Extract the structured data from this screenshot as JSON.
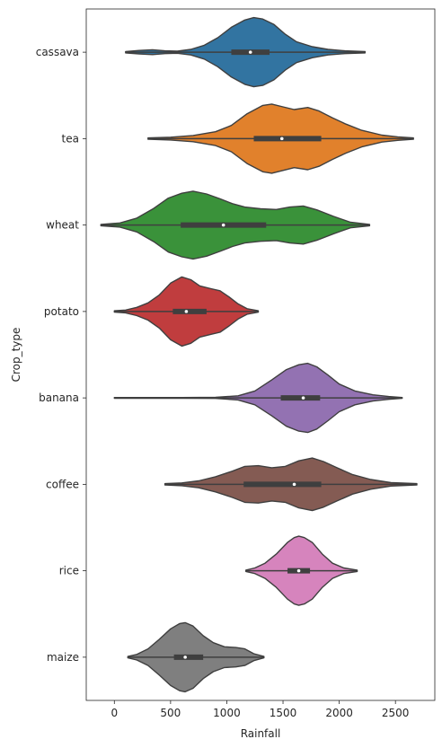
{
  "chart_data": {
    "type": "violin",
    "orientation": "horizontal",
    "xlabel": "Rainfall",
    "ylabel": "Crop_type",
    "xlim": [
      -250,
      2850
    ],
    "xticks": [
      0,
      500,
      1000,
      1500,
      2000,
      2500
    ],
    "grid": false,
    "categories": [
      "cassava",
      "tea",
      "wheat",
      "potato",
      "banana",
      "coffee",
      "rice",
      "maize"
    ],
    "violins": [
      {
        "category": "cassava",
        "color": "#3274a1",
        "min": 100,
        "max": 2230,
        "q1": 1040,
        "median": 1210,
        "q3": 1380,
        "profile": [
          [
            100,
            0.02
          ],
          [
            220,
            0.05
          ],
          [
            340,
            0.07
          ],
          [
            450,
            0.04
          ],
          [
            560,
            0.03
          ],
          [
            680,
            0.08
          ],
          [
            800,
            0.2
          ],
          [
            920,
            0.42
          ],
          [
            1040,
            0.72
          ],
          [
            1160,
            0.93
          ],
          [
            1240,
            1.0
          ],
          [
            1320,
            0.96
          ],
          [
            1420,
            0.8
          ],
          [
            1520,
            0.52
          ],
          [
            1620,
            0.3
          ],
          [
            1760,
            0.16
          ],
          [
            1900,
            0.08
          ],
          [
            2050,
            0.04
          ],
          [
            2230,
            0.02
          ]
        ]
      },
      {
        "category": "tea",
        "color": "#e1812c",
        "min": 300,
        "max": 2660,
        "q1": 1240,
        "median": 1490,
        "q3": 1840,
        "profile": [
          [
            300,
            0.02
          ],
          [
            500,
            0.04
          ],
          [
            700,
            0.09
          ],
          [
            900,
            0.2
          ],
          [
            1040,
            0.38
          ],
          [
            1180,
            0.72
          ],
          [
            1320,
            0.96
          ],
          [
            1400,
            1.0
          ],
          [
            1500,
            0.92
          ],
          [
            1600,
            0.84
          ],
          [
            1720,
            0.9
          ],
          [
            1820,
            0.8
          ],
          [
            1940,
            0.6
          ],
          [
            2060,
            0.42
          ],
          [
            2200,
            0.24
          ],
          [
            2380,
            0.1
          ],
          [
            2520,
            0.05
          ],
          [
            2660,
            0.02
          ]
        ]
      },
      {
        "category": "wheat",
        "color": "#3a923a",
        "min": -120,
        "max": 2270,
        "q1": 590,
        "median": 970,
        "q3": 1350,
        "profile": [
          [
            -120,
            0.02
          ],
          [
            50,
            0.06
          ],
          [
            200,
            0.2
          ],
          [
            350,
            0.48
          ],
          [
            480,
            0.78
          ],
          [
            600,
            0.92
          ],
          [
            700,
            0.98
          ],
          [
            820,
            0.9
          ],
          [
            940,
            0.76
          ],
          [
            1050,
            0.62
          ],
          [
            1160,
            0.52
          ],
          [
            1300,
            0.47
          ],
          [
            1440,
            0.45
          ],
          [
            1560,
            0.52
          ],
          [
            1680,
            0.55
          ],
          [
            1800,
            0.44
          ],
          [
            1950,
            0.25
          ],
          [
            2100,
            0.08
          ],
          [
            2270,
            0.02
          ]
        ]
      },
      {
        "category": "potato",
        "color": "#c03d3e",
        "min": 0,
        "max": 1280,
        "q1": 520,
        "median": 640,
        "q3": 820,
        "profile": [
          [
            0,
            0.02
          ],
          [
            100,
            0.04
          ],
          [
            200,
            0.12
          ],
          [
            300,
            0.25
          ],
          [
            400,
            0.48
          ],
          [
            500,
            0.82
          ],
          [
            600,
            1.0
          ],
          [
            680,
            0.92
          ],
          [
            760,
            0.74
          ],
          [
            860,
            0.66
          ],
          [
            940,
            0.6
          ],
          [
            1020,
            0.42
          ],
          [
            1100,
            0.22
          ],
          [
            1180,
            0.08
          ],
          [
            1280,
            0.02
          ]
        ]
      },
      {
        "category": "banana",
        "color": "#9372b2",
        "min": 0,
        "max": 2560,
        "q1": 1480,
        "median": 1680,
        "q3": 1830,
        "profile": [
          [
            0,
            0.01
          ],
          [
            300,
            0.01
          ],
          [
            600,
            0.01
          ],
          [
            900,
            0.015
          ],
          [
            1100,
            0.06
          ],
          [
            1250,
            0.2
          ],
          [
            1400,
            0.52
          ],
          [
            1530,
            0.82
          ],
          [
            1640,
            0.96
          ],
          [
            1720,
            1.0
          ],
          [
            1800,
            0.9
          ],
          [
            1900,
            0.66
          ],
          [
            2000,
            0.4
          ],
          [
            2140,
            0.2
          ],
          [
            2300,
            0.09
          ],
          [
            2440,
            0.04
          ],
          [
            2560,
            0.01
          ]
        ]
      },
      {
        "category": "coffee",
        "color": "#845b53",
        "min": 450,
        "max": 2690,
        "q1": 1150,
        "median": 1600,
        "q3": 1840,
        "profile": [
          [
            450,
            0.02
          ],
          [
            600,
            0.04
          ],
          [
            750,
            0.1
          ],
          [
            900,
            0.22
          ],
          [
            1050,
            0.38
          ],
          [
            1160,
            0.52
          ],
          [
            1280,
            0.54
          ],
          [
            1400,
            0.48
          ],
          [
            1520,
            0.52
          ],
          [
            1640,
            0.68
          ],
          [
            1760,
            0.76
          ],
          [
            1860,
            0.66
          ],
          [
            1980,
            0.48
          ],
          [
            2120,
            0.28
          ],
          [
            2280,
            0.14
          ],
          [
            2460,
            0.05
          ],
          [
            2690,
            0.02
          ]
        ]
      },
      {
        "category": "rice",
        "color": "#d684bd",
        "min": 1170,
        "max": 2160,
        "q1": 1540,
        "median": 1640,
        "q3": 1740,
        "profile": [
          [
            1170,
            0.02
          ],
          [
            1250,
            0.08
          ],
          [
            1340,
            0.22
          ],
          [
            1440,
            0.48
          ],
          [
            1540,
            0.82
          ],
          [
            1600,
            0.96
          ],
          [
            1640,
            1.0
          ],
          [
            1690,
            0.96
          ],
          [
            1760,
            0.82
          ],
          [
            1850,
            0.48
          ],
          [
            1940,
            0.22
          ],
          [
            2040,
            0.08
          ],
          [
            2160,
            0.02
          ]
        ]
      },
      {
        "category": "maize",
        "color": "#7f7f7f",
        "min": 120,
        "max": 1330,
        "q1": 530,
        "median": 630,
        "q3": 790,
        "profile": [
          [
            120,
            0.02
          ],
          [
            200,
            0.08
          ],
          [
            300,
            0.24
          ],
          [
            400,
            0.52
          ],
          [
            500,
            0.82
          ],
          [
            580,
            0.97
          ],
          [
            630,
            1.0
          ],
          [
            700,
            0.9
          ],
          [
            790,
            0.62
          ],
          [
            880,
            0.42
          ],
          [
            980,
            0.3
          ],
          [
            1080,
            0.28
          ],
          [
            1160,
            0.24
          ],
          [
            1240,
            0.1
          ],
          [
            1330,
            0.02
          ]
        ]
      }
    ]
  }
}
